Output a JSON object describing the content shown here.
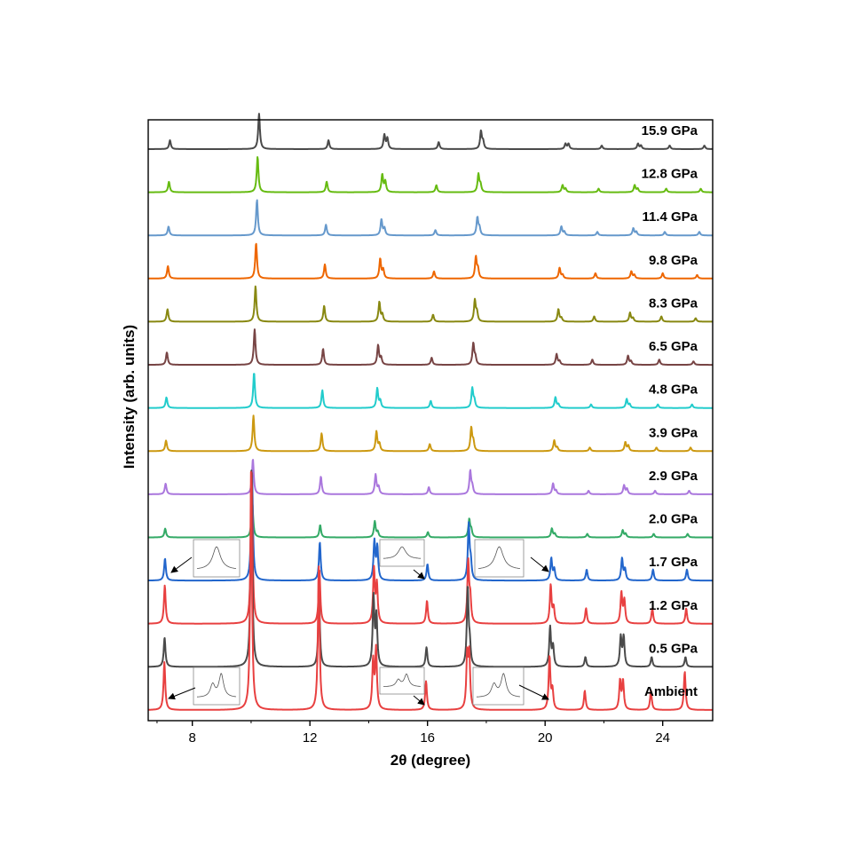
{
  "chart_data": {
    "type": "line",
    "xlabel": "2θ (degree)",
    "ylabel": "Intensity (arb. units)",
    "xlim": [
      6.5,
      25.7
    ],
    "x_ticks": [
      8,
      12,
      16,
      20,
      24
    ],
    "y_ticks": "none",
    "grid": false,
    "legend": "labels above each trace, right side",
    "peaks_ambient": [
      7.05,
      10.0,
      12.3,
      14.15,
      14.25,
      15.95,
      17.35,
      17.42,
      20.15,
      20.25,
      21.35,
      22.55,
      22.65,
      23.6,
      24.75
    ],
    "series": [
      {
        "name": "15.9 GPa",
        "color": "#4a4a4a",
        "shift": 0.27,
        "peak_heights": [
          0.25,
          1.0,
          0.25,
          0.4,
          0.3,
          0.2,
          0.5,
          0.2,
          0.15,
          0.15,
          0.1,
          0.15,
          0.1,
          0.1,
          0.1
        ]
      },
      {
        "name": "12.8 GPa",
        "color": "#66bb11",
        "shift": 0.22,
        "peak_heights": [
          0.3,
          1.0,
          0.3,
          0.5,
          0.3,
          0.2,
          0.5,
          0.2,
          0.2,
          0.1,
          0.1,
          0.2,
          0.1,
          0.1,
          0.1
        ]
      },
      {
        "name": "11.4 GPa",
        "color": "#6699cc",
        "shift": 0.2,
        "peak_heights": [
          0.25,
          1.0,
          0.3,
          0.45,
          0.2,
          0.15,
          0.5,
          0.2,
          0.25,
          0.1,
          0.1,
          0.2,
          0.1,
          0.1,
          0.1
        ]
      },
      {
        "name": "9.8 GPa",
        "color": "#ee6600",
        "shift": 0.17,
        "peak_heights": [
          0.35,
          1.0,
          0.4,
          0.55,
          0.25,
          0.2,
          0.6,
          0.25,
          0.3,
          0.1,
          0.15,
          0.2,
          0.1,
          0.15,
          0.1
        ]
      },
      {
        "name": "8.3 GPa",
        "color": "#888811",
        "shift": 0.15,
        "peak_heights": [
          0.35,
          1.0,
          0.45,
          0.55,
          0.2,
          0.2,
          0.6,
          0.25,
          0.35,
          0.1,
          0.15,
          0.25,
          0.1,
          0.15,
          0.1
        ]
      },
      {
        "name": "6.5 GPa",
        "color": "#774444",
        "shift": 0.12,
        "peak_heights": [
          0.35,
          1.0,
          0.45,
          0.55,
          0.2,
          0.2,
          0.6,
          0.2,
          0.3,
          0.1,
          0.15,
          0.25,
          0.1,
          0.15,
          0.1
        ]
      },
      {
        "name": "4.8 GPa",
        "color": "#22cccc",
        "shift": 0.1,
        "peak_heights": [
          0.3,
          1.0,
          0.5,
          0.55,
          0.2,
          0.2,
          0.55,
          0.2,
          0.3,
          0.1,
          0.1,
          0.25,
          0.1,
          0.1,
          0.1
        ]
      },
      {
        "name": "3.9 GPa",
        "color": "#cc9911",
        "shift": 0.08,
        "peak_heights": [
          0.3,
          1.0,
          0.5,
          0.55,
          0.2,
          0.2,
          0.65,
          0.25,
          0.3,
          0.1,
          0.1,
          0.25,
          0.15,
          0.1,
          0.1
        ]
      },
      {
        "name": "2.9 GPa",
        "color": "#aa77dd",
        "shift": 0.06,
        "peak_heights": [
          0.3,
          1.0,
          0.5,
          0.55,
          0.2,
          0.2,
          0.65,
          0.2,
          0.3,
          0.1,
          0.1,
          0.25,
          0.15,
          0.1,
          0.1
        ]
      },
      {
        "name": "2.0 GPa",
        "color": "#33aa66",
        "shift": 0.04,
        "peak_heights": [
          0.25,
          1.0,
          0.35,
          0.45,
          0.15,
          0.15,
          0.5,
          0.2,
          0.25,
          0.1,
          0.1,
          0.2,
          0.1,
          0.1,
          0.1
        ]
      },
      {
        "name": "1.7 GPa",
        "color": "#2266cc",
        "shift": 0.03,
        "peak_heights": [
          0.2,
          1.0,
          0.35,
          0.35,
          0.3,
          0.15,
          0.5,
          0.15,
          0.2,
          0.1,
          0.1,
          0.2,
          0.1,
          0.1,
          0.1
        ]
      },
      {
        "name": "1.2 GPa",
        "color": "#e84040",
        "shift": 0.02,
        "peak_heights": [
          0.25,
          1.0,
          0.35,
          0.35,
          0.25,
          0.15,
          0.4,
          0.15,
          0.25,
          0.1,
          0.1,
          0.2,
          0.15,
          0.1,
          0.1
        ]
      },
      {
        "name": "0.5 GPa",
        "color": "#4a4a4a",
        "shift": 0.01,
        "peak_heights": [
          0.15,
          1.0,
          0.35,
          0.35,
          0.25,
          0.1,
          0.4,
          0.1,
          0.2,
          0.1,
          0.05,
          0.15,
          0.15,
          0.05,
          0.05
        ]
      },
      {
        "name": "Ambient",
        "color": "#e84040",
        "shift": 0.0,
        "peak_heights": [
          0.2,
          1.0,
          0.6,
          0.2,
          0.25,
          0.12,
          0.22,
          0.22,
          0.22,
          0.08,
          0.08,
          0.12,
          0.12,
          0.08,
          0.16
        ]
      }
    ]
  }
}
